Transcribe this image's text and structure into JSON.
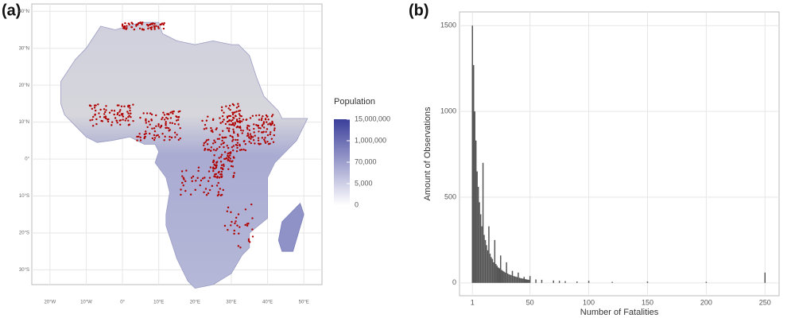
{
  "chart_data": [
    {
      "type": "map",
      "label": "(a)",
      "xlim": [
        -25,
        55
      ],
      "ylim": [
        -34,
        42
      ],
      "xticks": [
        {
          "value": -20,
          "label": "20°W"
        },
        {
          "value": -10,
          "label": "10°W"
        },
        {
          "value": 0,
          "label": "0°"
        },
        {
          "value": 10,
          "label": "10°E"
        },
        {
          "value": 20,
          "label": "20°E"
        },
        {
          "value": 30,
          "label": "30°E"
        },
        {
          "value": 40,
          "label": "40°E"
        },
        {
          "value": 50,
          "label": "50°E"
        }
      ],
      "yticks": [
        {
          "value": -30,
          "label": "30°S"
        },
        {
          "value": -20,
          "label": "20°S"
        },
        {
          "value": -10,
          "label": "10°S"
        },
        {
          "value": 0,
          "label": "0°"
        },
        {
          "value": 10,
          "label": "10°N"
        },
        {
          "value": 20,
          "label": "20°N"
        },
        {
          "value": 30,
          "label": "30°N"
        },
        {
          "value": 40,
          "label": "40°N"
        }
      ],
      "grid": true,
      "legend": {
        "title": "Population",
        "colors": [
          "#ffffff",
          "#3b3f9a"
        ],
        "ticks": [
          {
            "value": 0,
            "label": "0"
          },
          {
            "value": 5000,
            "label": "5,000"
          },
          {
            "value": 70000,
            "label": "70,000"
          },
          {
            "value": 1000000,
            "label": "1,000,000"
          },
          {
            "value": 15000000,
            "label": "15,000,000"
          }
        ]
      },
      "event_color": "#b00000"
    },
    {
      "type": "bar",
      "label": "(b)",
      "x_label": "Number of Fatalities",
      "y_label": "Amount of Observations",
      "color": "#555555",
      "grid": true,
      "xlim": [
        -10,
        262
      ],
      "ylim": [
        -75,
        1580
      ],
      "xticks": [
        1,
        50,
        100,
        150,
        200,
        250
      ],
      "yticks": [
        0,
        500,
        1000,
        1500
      ],
      "x": [
        1,
        2,
        3,
        4,
        5,
        6,
        7,
        8,
        9,
        10,
        11,
        12,
        13,
        14,
        15,
        16,
        17,
        18,
        19,
        20,
        21,
        22,
        23,
        24,
        25,
        26,
        27,
        28,
        29,
        30,
        31,
        32,
        33,
        34,
        35,
        36,
        37,
        38,
        39,
        40,
        41,
        42,
        43,
        44,
        45,
        46,
        47,
        48,
        49,
        50,
        55,
        60,
        70,
        75,
        80,
        90,
        100,
        120,
        150,
        200,
        250
      ],
      "values": [
        1500,
        1270,
        1000,
        830,
        650,
        560,
        470,
        400,
        330,
        700,
        280,
        250,
        220,
        190,
        330,
        170,
        150,
        140,
        120,
        250,
        110,
        100,
        90,
        85,
        160,
        75,
        70,
        65,
        60,
        120,
        55,
        50,
        48,
        45,
        70,
        40,
        38,
        36,
        34,
        60,
        30,
        28,
        26,
        25,
        35,
        22,
        20,
        19,
        18,
        40,
        20,
        18,
        14,
        12,
        10,
        8,
        12,
        6,
        8,
        6,
        60
      ]
    }
  ]
}
